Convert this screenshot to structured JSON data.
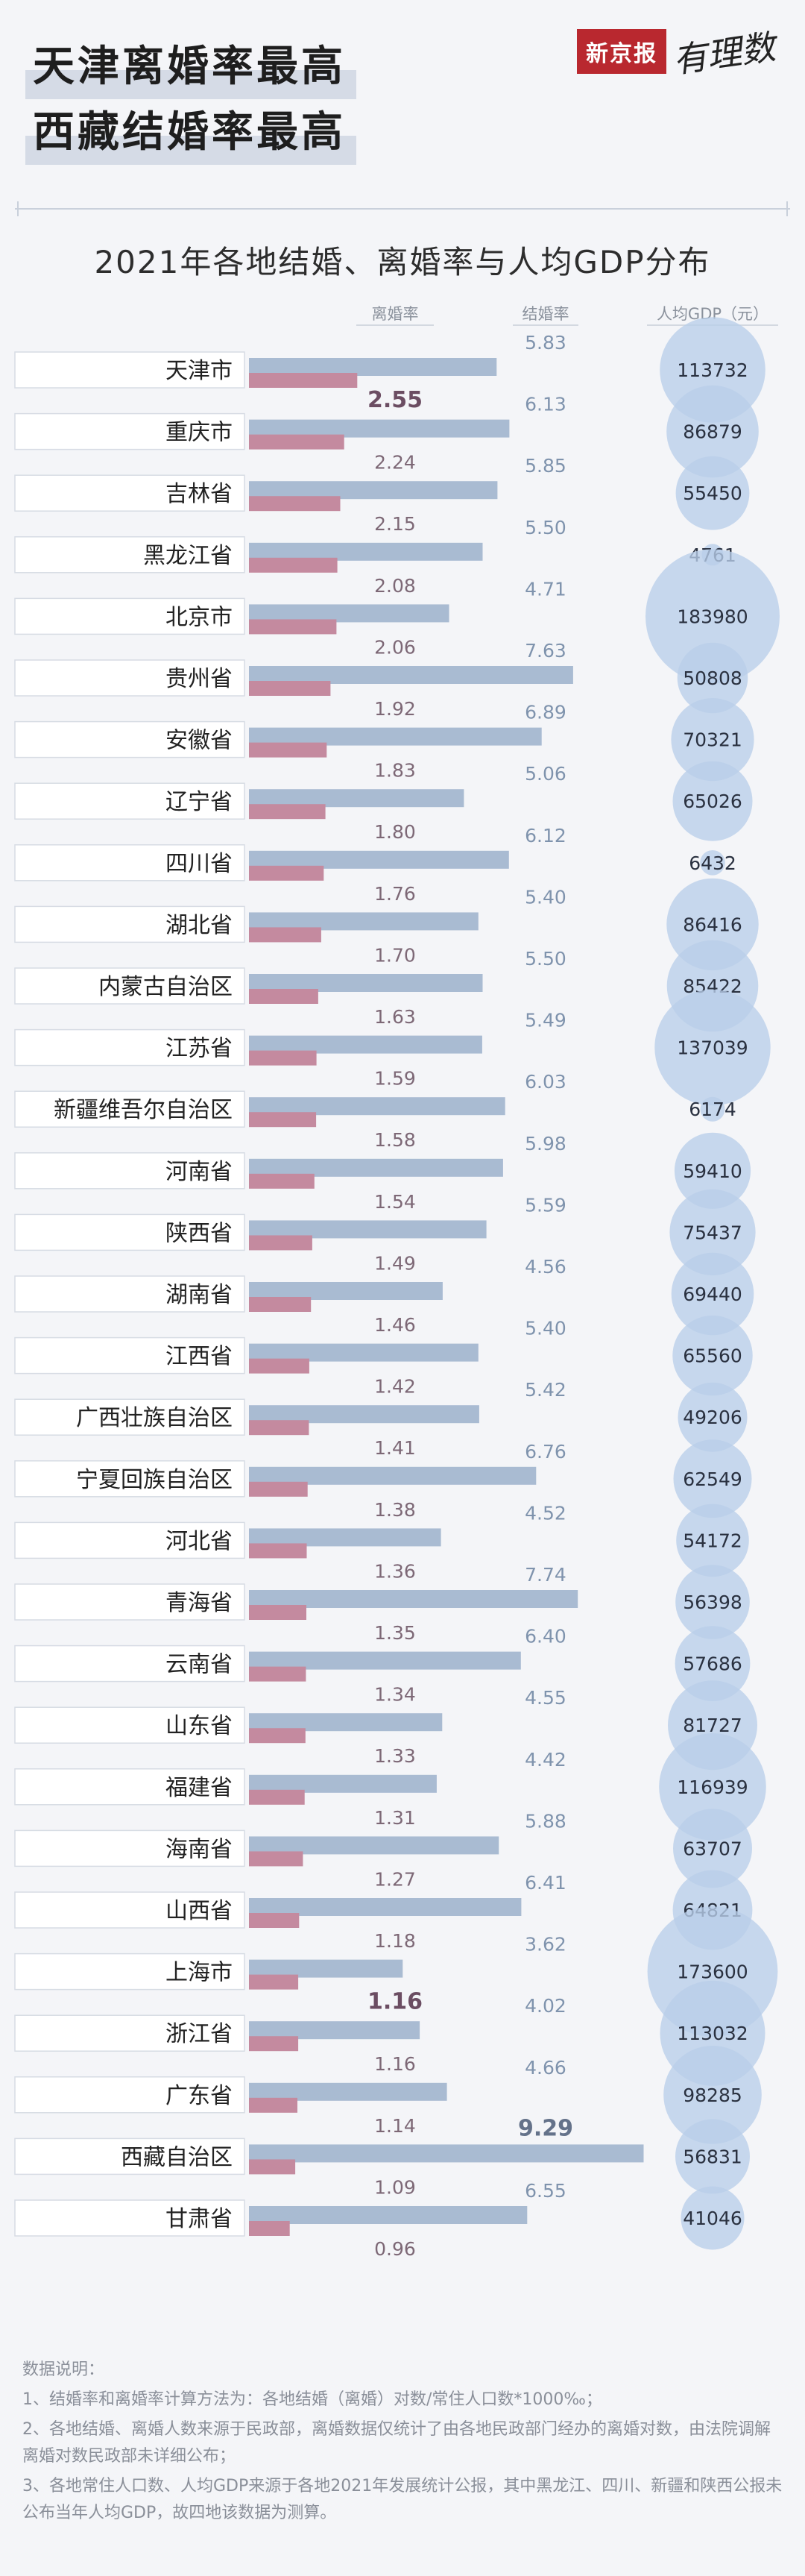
{
  "header": {
    "headline_1": "天津离婚率最高",
    "headline_2": "西藏结婚率最高",
    "brand_box": "新京报",
    "brand_script": "有理数"
  },
  "colors": {
    "marriage_bar": "#a9bbd2",
    "divorce_bar": "#c48a9f",
    "gdp_bubble": "#b8cee9",
    "value_text": "#7f93ad",
    "highlight_text": "#6b4d62"
  },
  "chart_data": {
    "type": "bar",
    "title": "2021年各地结婚、离婚率与人均GDP分布",
    "legend": {
      "divorce": "离婚率",
      "marriage": "结婚率",
      "gdp": "人均GDP（元）"
    },
    "categories": [
      "天津市",
      "重庆市",
      "吉林省",
      "黑龙江省",
      "北京市",
      "贵州省",
      "安徽省",
      "辽宁省",
      "四川省",
      "湖北省",
      "内蒙古自治区",
      "江苏省",
      "新疆维吾尔自治区",
      "河南省",
      "陕西省",
      "湖南省",
      "江西省",
      "广西壮族自治区",
      "宁夏回族自治区",
      "河北省",
      "青海省",
      "云南省",
      "山东省",
      "福建省",
      "海南省",
      "山西省",
      "上海市",
      "浙江省",
      "广东省",
      "西藏自治区",
      "甘肃省"
    ],
    "series": [
      {
        "name": "结婚率",
        "values": [
          5.83,
          6.13,
          5.85,
          5.5,
          4.71,
          7.63,
          6.89,
          5.06,
          6.12,
          5.4,
          5.5,
          5.49,
          6.03,
          5.98,
          5.59,
          4.56,
          5.4,
          5.42,
          6.76,
          4.52,
          7.74,
          6.4,
          4.55,
          4.42,
          5.88,
          6.41,
          3.62,
          4.02,
          4.66,
          9.29,
          6.55
        ]
      },
      {
        "name": "离婚率",
        "values": [
          2.55,
          2.24,
          2.15,
          2.08,
          2.06,
          1.92,
          1.83,
          1.8,
          1.76,
          1.7,
          1.63,
          1.59,
          1.58,
          1.54,
          1.49,
          1.46,
          1.42,
          1.41,
          1.38,
          1.36,
          1.35,
          1.34,
          1.33,
          1.31,
          1.27,
          1.18,
          1.16,
          1.16,
          1.14,
          1.09,
          0.96
        ]
      },
      {
        "name": "人均GDP（元）",
        "values": [
          113732,
          86879,
          55450,
          4761,
          183980,
          50808,
          70321,
          65026,
          6432,
          86416,
          85422,
          137039,
          6174,
          59410,
          75437,
          69440,
          65560,
          49206,
          62549,
          54172,
          56398,
          57686,
          81727,
          116939,
          63707,
          64821,
          173600,
          113032,
          98285,
          56831,
          41046
        ]
      }
    ],
    "highlight": {
      "max_divorce": "2.55",
      "max_marriage": "9.29",
      "min_divorce_shanghai": "1.16"
    }
  },
  "notes": {
    "heading": "数据说明：",
    "items": [
      "1、结婚率和离婚率计算方法为：各地结婚（离婚）对数/常住人口数*1000‰；",
      "2、各地结婚、离婚人数来源于民政部，离婚数据仅统计了由各地民政部门经办的离婚对数，由法院调解离婚对数民政部未详细公布；",
      "3、各地常住人口数、人均GDP来源于各地2021年发展统计公报，其中黑龙江、四川、新疆和陕西公报未公布当年人均GDP，故四地该数据为测算。"
    ]
  }
}
